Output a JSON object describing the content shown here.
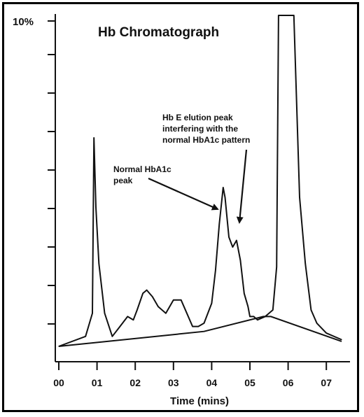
{
  "chart_data": {
    "type": "line",
    "title": "Hb Chromatograph",
    "xlabel": "Time (mins)",
    "ylabel": "",
    "x_ticks": [
      "00",
      "01",
      "02",
      "03",
      "04",
      "05",
      "06",
      "07"
    ],
    "y_tick_label": "10%",
    "xlim": [
      0,
      7.5
    ],
    "ylim": [
      0,
      10
    ],
    "series": [
      {
        "x": [
          0.0,
          0.7,
          0.88,
          0.92,
          0.97,
          1.05,
          1.2,
          1.4,
          1.6,
          1.8,
          1.95,
          2.05,
          2.2,
          2.3,
          2.45,
          2.6,
          2.8,
          3.0,
          3.2,
          3.35,
          3.5,
          3.65,
          3.8,
          4.0,
          4.1,
          4.2,
          4.3,
          4.35,
          4.45,
          4.55,
          4.65,
          4.75,
          4.85,
          4.95,
          5.0,
          5.1,
          5.2,
          5.4,
          5.6,
          5.7,
          5.75,
          6.15,
          6.3,
          6.45,
          6.6,
          6.75,
          7.0,
          7.4
        ],
        "y": [
          0.0,
          0.3,
          1.0,
          6.3,
          4.2,
          2.5,
          1.0,
          0.3,
          0.6,
          0.9,
          0.8,
          1.1,
          1.6,
          1.7,
          1.5,
          1.2,
          1.0,
          1.4,
          1.4,
          1.0,
          0.6,
          0.6,
          0.7,
          1.3,
          2.3,
          3.7,
          4.8,
          4.5,
          3.3,
          3.0,
          3.2,
          2.6,
          1.6,
          1.2,
          0.9,
          0.9,
          0.8,
          0.9,
          1.1,
          2.4,
          10.0,
          10.0,
          4.5,
          2.5,
          1.1,
          0.7,
          0.4,
          0.2
        ]
      }
    ],
    "baseline": {
      "x": [
        0.0,
        3.8,
        5.35,
        5.55,
        7.4
      ],
      "y": [
        0.0,
        0.45,
        0.9,
        0.9,
        0.15
      ]
    },
    "annotations": [
      {
        "lines": [
          "Hb E elution peak",
          "interfering with the",
          "normal HbA1c pattern"
        ]
      },
      {
        "lines": [
          "Normal HbA1c",
          "peak"
        ]
      }
    ]
  }
}
